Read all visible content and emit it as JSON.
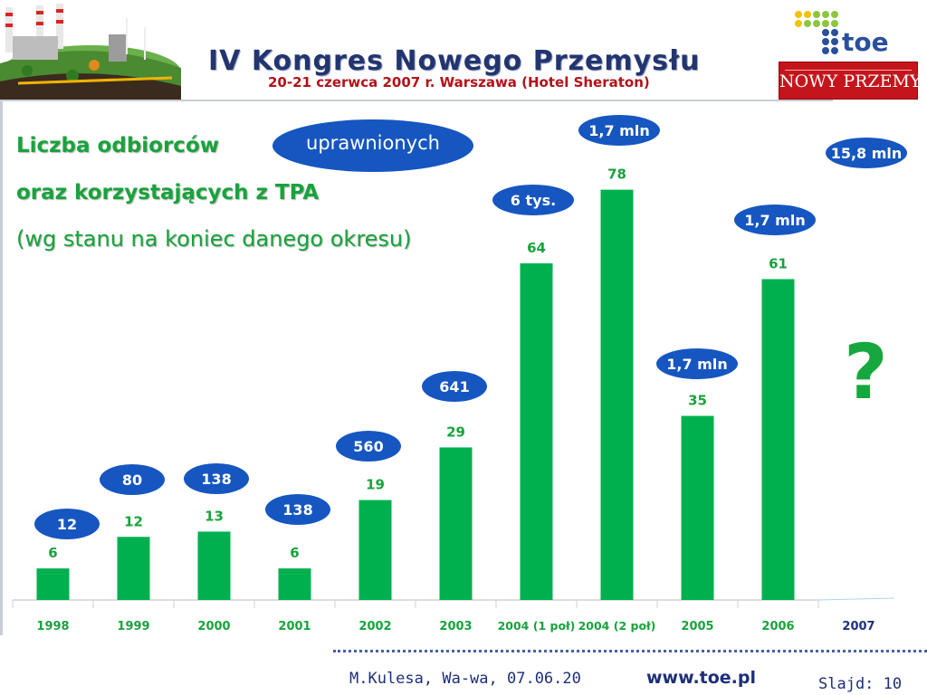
{
  "header": {
    "congress_title": "IV Kongres Nowego Przemysłu",
    "congress_subtitle": "20-21 czerwca 2007 r. Warszawa (Hotel Sheraton)",
    "toe_logo_text": "toe",
    "np_logo_text": "NOWY PRZEMYSŁ"
  },
  "slide": {
    "title_line1": "Liczba odbiorców",
    "title_oval": "uprawnionych",
    "title_line2": "oraz korzystających z TPA",
    "title_line3": "(wg stanu na koniec danego okresu)",
    "question_mark": "?"
  },
  "chart_data": {
    "type": "bar",
    "categories": [
      "1998",
      "1999",
      "2000",
      "2001",
      "2002",
      "2003",
      "2004 (1 poł)",
      "2004 (2 poł)",
      "2005",
      "2006",
      "2007"
    ],
    "values": [
      6,
      12,
      13,
      6,
      19,
      29,
      64,
      78,
      35,
      61,
      null
    ],
    "oval_labels": [
      "12",
      "80",
      "138",
      "138",
      "560",
      "641",
      "6 tys.",
      "1,7 mln",
      "1,7 mln",
      "1,7 mln",
      "15,8 mln"
    ],
    "ylim": [
      0,
      80
    ],
    "grid": false,
    "colors": {
      "bar": "#00b04f",
      "value_label": "#18a33c",
      "oval": "#1656c0",
      "axis_label": "#18a33c"
    }
  },
  "footer": {
    "author": "M.Kulesa, Wa-wa, 07.06.20",
    "url": "www.toe.pl",
    "slide_number": "Slajd: 10"
  }
}
